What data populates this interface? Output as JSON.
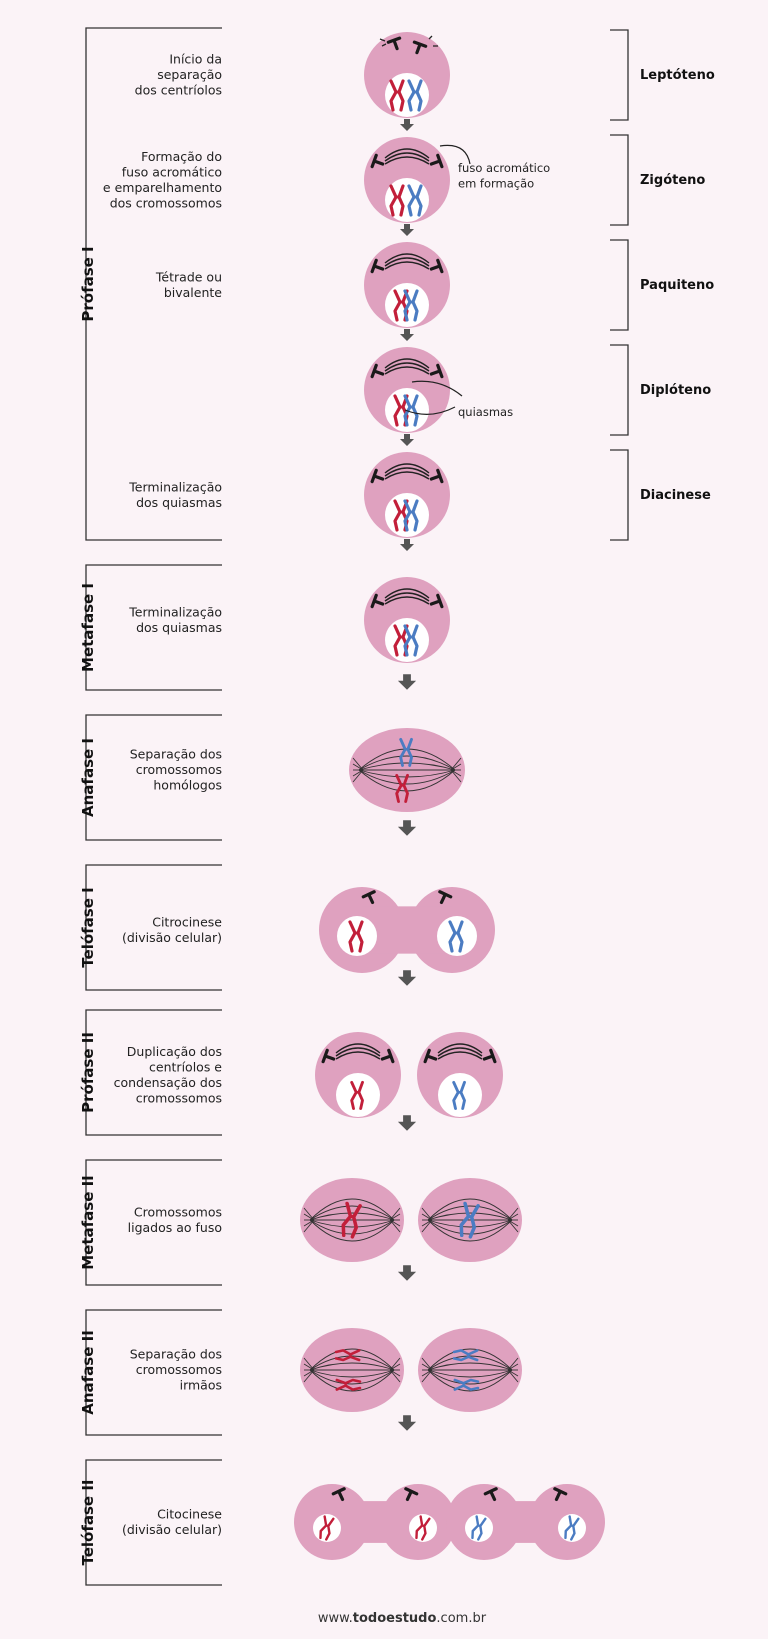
{
  "colors": {
    "background": "#fbf3f7",
    "cell": "#dfa1bf",
    "nucleus": "#ffffff",
    "chromosome_red": "#c21f3a",
    "chromosome_blue": "#4b7cc2",
    "centriole": "#1a1a1a",
    "arrow": "#555555",
    "bracket": "#333333"
  },
  "prophase_I": {
    "label": "Prófase I",
    "steps": [
      {
        "description": [
          "Início da",
          "separação",
          "dos centríolos"
        ],
        "substage": "Leptóteno"
      },
      {
        "description": [
          "Formação do",
          "fuso acromático",
          "e emparelhamento",
          "dos cromossomos"
        ],
        "substage": "Zigóteno",
        "annotation": [
          "fuso acromático",
          "em formação"
        ]
      },
      {
        "description": [
          "Tétrade ou",
          "bivalente"
        ],
        "substage": "Paquiteno"
      },
      {
        "description": [],
        "substage": "Diplóteno",
        "annotation": [
          "quiasmas"
        ]
      },
      {
        "description": [
          "Terminalização",
          "dos quiasmas"
        ],
        "substage": "Diacinese"
      }
    ]
  },
  "phases": [
    {
      "label": "Metafase I",
      "description": [
        "Terminalização",
        "dos quiasmas"
      ]
    },
    {
      "label": "Anafase I",
      "description": [
        "Separação dos",
        "cromossomos",
        "homólogos"
      ]
    },
    {
      "label": "Telófase I",
      "description": [
        "Citrocinese",
        "(divisão celular)"
      ]
    },
    {
      "label": "Prófase II",
      "description": [
        "Duplicação dos",
        "centríolos e",
        "condensação dos",
        "cromossomos"
      ]
    },
    {
      "label": "Metafase II",
      "description": [
        "Cromossomos",
        "ligados ao fuso"
      ]
    },
    {
      "label": "Anafase II",
      "description": [
        "Separação dos",
        "cromossomos",
        "irmãos"
      ]
    },
    {
      "label": "Telófase II",
      "description": [
        "Citocinese",
        "(divisão celular)"
      ]
    }
  ],
  "footer": {
    "prefix": "www.",
    "brand": "todoestudo",
    "suffix": ".com.br"
  }
}
